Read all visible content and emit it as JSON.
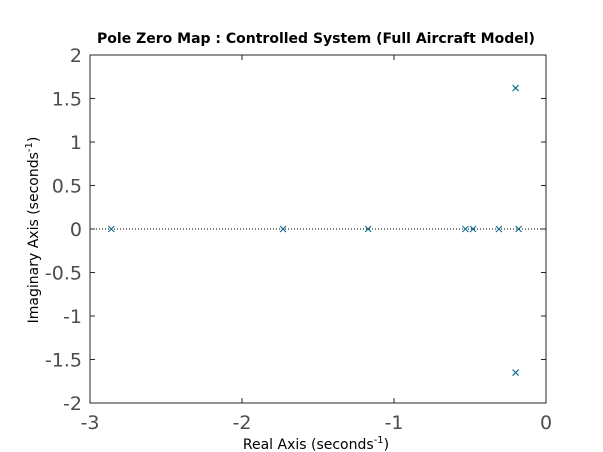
{
  "chart_data": {
    "type": "scatter",
    "title": "Pole Zero Map : Controlled System (Full Aircraft Model)",
    "xlabel": {
      "text": "Real Axis (seconds",
      "superscript": "-1",
      "suffix": ")"
    },
    "ylabel": {
      "text": "Imaginary Axis (seconds",
      "superscript": "-1",
      "suffix": ")"
    },
    "xlim": [
      -3,
      0
    ],
    "ylim": [
      -2,
      2
    ],
    "xticks": [
      -3,
      -2,
      -1,
      0
    ],
    "xtick_labels": [
      "-3",
      "-2",
      "-1",
      "0"
    ],
    "yticks": [
      2,
      1.5,
      1,
      0.5,
      0,
      -0.5,
      -1,
      -1.5,
      -2
    ],
    "ytick_labels": [
      "2",
      "1.5",
      "1",
      "0.5",
      "0",
      "-0.5",
      "-1",
      "-1.5",
      "-2"
    ],
    "grid": false,
    "reference_line": {
      "axis": "y",
      "value": 0,
      "style": "dotted"
    },
    "series": [
      {
        "name": "poles",
        "marker": "x",
        "color": "#0b6b8f",
        "points": [
          {
            "x": -2.86,
            "y": 0
          },
          {
            "x": -1.73,
            "y": 0
          },
          {
            "x": -1.17,
            "y": 0
          },
          {
            "x": -0.53,
            "y": 0
          },
          {
            "x": -0.48,
            "y": 0
          },
          {
            "x": -0.31,
            "y": 0
          },
          {
            "x": -0.18,
            "y": 0
          },
          {
            "x": -0.2,
            "y": 1.62
          },
          {
            "x": -0.2,
            "y": -1.65
          }
        ]
      }
    ]
  }
}
